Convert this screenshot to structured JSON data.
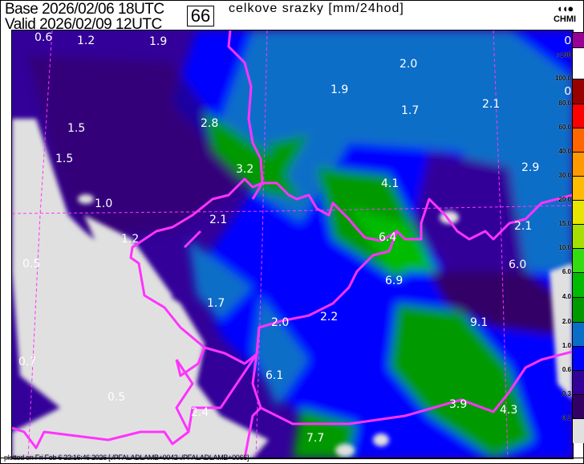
{
  "header": {
    "base_label": "Base 2026/02/06 18UTC",
    "valid_label": "Valid 2026/02/09 12UTC",
    "forecast_hour": "66",
    "title": "celkove srazky [mm/24hod]",
    "logo_text": "CHMI",
    "logo_mark": "◖◖●"
  },
  "legend": {
    "zero_marks": [
      "0",
      "0"
    ],
    "classes": [
      {
        "label": ">100",
        "color": "#990099"
      },
      {
        "label": "100.0",
        "color": "#ffffff"
      },
      {
        "label": "80.0",
        "color": "#990000"
      },
      {
        "label": "60.0",
        "color": "#ff0000"
      },
      {
        "label": "40.0",
        "color": "#ff6600"
      },
      {
        "label": "30.0",
        "color": "#ff9900"
      },
      {
        "label": "20.0",
        "color": "#ffbb00"
      },
      {
        "label": "15.0",
        "color": "#e6e600"
      },
      {
        "label": "10.0",
        "color": "#a6e000"
      },
      {
        "label": "6.0",
        "color": "#33dd11"
      },
      {
        "label": "4.0",
        "color": "#00bb00"
      },
      {
        "label": "2.0",
        "color": "#009900"
      },
      {
        "label": "1.0",
        "color": "#0a6ec8"
      },
      {
        "label": "0.6",
        "color": "#0000ff"
      },
      {
        "label": "0.3",
        "color": "#330099"
      },
      {
        "label": "0.1",
        "color": "#330066"
      },
      {
        "label": "",
        "color": "#e0e0e0"
      }
    ]
  },
  "map": {
    "border_color": "#ff33ff",
    "values": [
      "0.6",
      "1.2",
      "1.9",
      "2.0",
      "1.9",
      "1.7",
      "2.1",
      "2.8",
      "1.5",
      "1.5",
      "3.2",
      "4.1",
      "2.9",
      "1.0",
      "2.1",
      "2.1",
      "1.2",
      "6.4",
      "0.5",
      "6.0",
      "6.9",
      "1.7",
      "2.0",
      "2.2",
      "9.1",
      "0.7",
      "6.1",
      "0.5",
      "3.9",
      "4.3",
      "2.4",
      "7.7"
    ]
  },
  "footer": {
    "text": "plotted on Fri Feb  6 22:16:46 2026 [./PFALADLAMB+0042 ./PFALADLAMB+0066]"
  }
}
